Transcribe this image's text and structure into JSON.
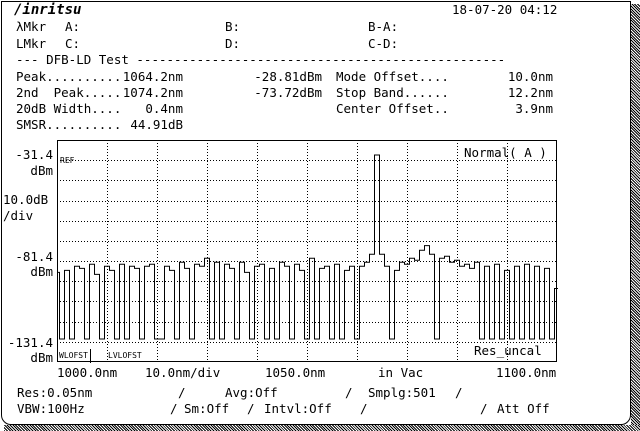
{
  "header": {
    "brand": "/inritsu",
    "datetime": "18-07-20 04:12"
  },
  "markers": {
    "wl_label": "λMkr",
    "a": "A:",
    "b": "B:",
    "ba": "B-A:",
    "lv_label": "LMkr",
    "c": "C:",
    "d": "D:",
    "cd": "C-D:"
  },
  "test": {
    "title": "--- DFB-LD Test -------------------------------------------------",
    "rows": [
      {
        "label": "Peak..........",
        "wl": "1064.2nm",
        "level": "-28.81dBm",
        "label2": "Mode Offset....",
        "value2": "10.0nm"
      },
      {
        "label": "2nd  Peak.....",
        "wl": "1074.2nm",
        "level": "-73.72dBm",
        "label2": "Stop Band......",
        "value2": "12.2nm"
      },
      {
        "label": "20dB Width....",
        "wl": "0.4nm",
        "level": "",
        "label2": "Center Offset..",
        "value2": "3.9nm"
      },
      {
        "label": "SMSR..........",
        "wl": "44.91dB",
        "level": "",
        "label2": "",
        "value2": ""
      }
    ]
  },
  "axis": {
    "ref_level": "-31.4",
    "ref_unit": "dBm",
    "scale": "10.0dB",
    "scale_unit": "/div",
    "mid_level": "-81.4",
    "mid_unit": "dBm",
    "bottom_level": "-131.4",
    "bottom_unit": "dBm",
    "x_start": "1000.0nm",
    "x_div": "10.0nm/div",
    "x_center": "1050.0nm",
    "medium": "in Vac",
    "x_stop": "1100.0nm"
  },
  "plot_labels": {
    "ref": "REF",
    "mode": "Normal( A )",
    "wl_offset": "WLOFST",
    "lv_offset": "LVLOFST",
    "res": "Res_uncal"
  },
  "status": {
    "res": "Res:0.05nm",
    "avg": "Avg:Off",
    "smplg": "Smplg:501",
    "vbw": "VBW:100Hz",
    "sm": "Sm:Off",
    "intvl": "Intvl:Off",
    "att": "Att Off",
    "sep": "/"
  },
  "chart_data": {
    "type": "line",
    "xlabel": "",
    "ylabel": "",
    "xlim": [
      1000,
      1100
    ],
    "ylim": [
      -131.4,
      -21.4
    ],
    "ref_level": -31.4,
    "grid": true,
    "x_step": 1,
    "x_start": 1000,
    "values": [
      -87,
      -120,
      -86,
      -120,
      -84,
      -85,
      -120,
      -83,
      -88,
      -120,
      -84,
      -86,
      -120,
      -83,
      -120,
      -84,
      -85,
      -120,
      -84,
      -83,
      -120,
      -120,
      -84,
      -86,
      -120,
      -82,
      -85,
      -120,
      -83,
      -84,
      -80,
      -120,
      -82,
      -120,
      -83,
      -85,
      -120,
      -82,
      -87,
      -120,
      -84,
      -83,
      -120,
      -85,
      -120,
      -82,
      -84,
      -120,
      -83,
      -86,
      -120,
      -80,
      -120,
      -85,
      -84,
      -120,
      -83,
      -120,
      -86,
      -84,
      -120,
      -84,
      -82,
      -78,
      -28.81,
      -78,
      -84,
      -120,
      -86,
      -82,
      -83,
      -80,
      -81,
      -76,
      -73.72,
      -78,
      -120,
      -80,
      -79,
      -82,
      -81,
      -84,
      -83,
      -85,
      -82,
      -120,
      -84,
      -120,
      -83,
      -120,
      -86,
      -120,
      -84,
      -120,
      -83,
      -120,
      -84,
      -120,
      -85,
      -120,
      -95
    ]
  }
}
